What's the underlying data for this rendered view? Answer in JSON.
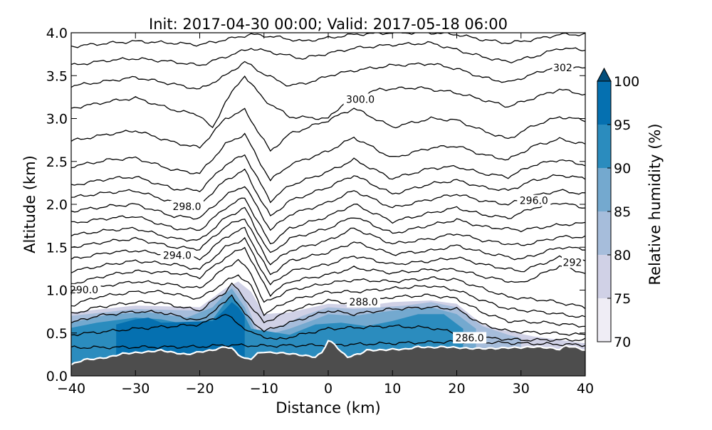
{
  "chart_data": {
    "type": "contour",
    "title": "Init: 2017-04-30 00:00; Valid: 2017-05-18 06:00",
    "xlabel": "Distance (km)",
    "ylabel": "Altitude (km)",
    "xlim": [
      -40,
      40
    ],
    "ylim": [
      0.0,
      4.0
    ],
    "xticks": [
      -40,
      -30,
      -20,
      -10,
      0,
      10,
      20,
      30,
      40
    ],
    "yticks": [
      0.0,
      0.5,
      1.0,
      1.5,
      2.0,
      2.5,
      3.0,
      3.5,
      4.0
    ],
    "xtick_labels": [
      "−40",
      "−30",
      "−20",
      "−10",
      "0",
      "10",
      "20",
      "30",
      "40"
    ],
    "ytick_labels": [
      "0.0",
      "0.5",
      "1.0",
      "1.5",
      "2.0",
      "2.5",
      "3.0",
      "3.5",
      "4.0"
    ],
    "colorbar": {
      "label": "Relative humidity (%)",
      "ticks": [
        70,
        75,
        80,
        85,
        90,
        95,
        100
      ],
      "tick_labels": [
        "70",
        "75",
        "80",
        "85",
        "90",
        "95",
        "100"
      ],
      "extend": "max",
      "colors": [
        "#efedf5",
        "#d0d1e6",
        "#a6bddb",
        "#74a9cf",
        "#2b8cbe",
        "#0570b0",
        "#034e7b"
      ]
    },
    "contour_labels": [
      {
        "text": "302",
        "x": 36.5,
        "y": 3.57
      },
      {
        "text": "300.0",
        "x": 5,
        "y": 3.2
      },
      {
        "text": "298.0",
        "x": -22,
        "y": 1.95
      },
      {
        "text": "296.0",
        "x": 32,
        "y": 2.02
      },
      {
        "text": "294.0",
        "x": -23.5,
        "y": 1.38
      },
      {
        "text": "292",
        "x": 38,
        "y": 1.3
      },
      {
        "text": "290.0",
        "x": -38,
        "y": 0.98
      },
      {
        "text": "288.0",
        "x": 5.5,
        "y": 0.84
      },
      {
        "text": "286.0",
        "x": 22,
        "y": 0.42
      }
    ],
    "terrain": {
      "x": [
        -40,
        -38,
        -36,
        -34,
        -32,
        -30,
        -28,
        -26,
        -24,
        -22,
        -20,
        -18,
        -16,
        -15,
        -14,
        -13,
        -12,
        -11,
        -10,
        -9,
        -8,
        -6,
        -4,
        -2,
        -1,
        0,
        1,
        2,
        3,
        4,
        5,
        6,
        8,
        10,
        12,
        14,
        16,
        18,
        20,
        22,
        24,
        26,
        28,
        30,
        32,
        34,
        36,
        37,
        38,
        40
      ],
      "y": [
        0.13,
        0.19,
        0.2,
        0.22,
        0.26,
        0.27,
        0.28,
        0.3,
        0.27,
        0.25,
        0.28,
        0.3,
        0.34,
        0.32,
        0.25,
        0.2,
        0.2,
        0.26,
        0.28,
        0.27,
        0.27,
        0.26,
        0.24,
        0.22,
        0.27,
        0.41,
        0.37,
        0.28,
        0.22,
        0.24,
        0.26,
        0.3,
        0.3,
        0.31,
        0.31,
        0.34,
        0.33,
        0.34,
        0.33,
        0.32,
        0.32,
        0.32,
        0.33,
        0.33,
        0.34,
        0.33,
        0.31,
        0.35,
        0.34,
        0.3
      ]
    },
    "theta_lines": [
      {
        "level": 286,
        "x": [
          -40,
          -20,
          -16,
          -10,
          0,
          10,
          20,
          30,
          40
        ],
        "y": [
          0.33,
          0.34,
          0.36,
          0.35,
          0.36,
          0.38,
          0.4,
          0.38,
          0.36
        ]
      },
      {
        "level": 287,
        "x": [
          -40,
          -30,
          -20,
          -16,
          -12,
          -8,
          0,
          10,
          16,
          20,
          25,
          30,
          40
        ],
        "y": [
          0.48,
          0.55,
          0.6,
          0.72,
          0.5,
          0.42,
          0.55,
          0.58,
          0.56,
          0.5,
          0.44,
          0.42,
          0.42
        ]
      },
      {
        "level": 288,
        "x": [
          -40,
          -36,
          -30,
          -26,
          -20,
          -16,
          -15,
          -13,
          -10,
          -6,
          0,
          4,
          10,
          16,
          20,
          24,
          28,
          34,
          40
        ],
        "y": [
          0.62,
          0.7,
          0.75,
          0.74,
          0.64,
          0.86,
          0.95,
          0.72,
          0.52,
          0.62,
          0.76,
          0.72,
          0.78,
          0.8,
          0.78,
          0.6,
          0.52,
          0.5,
          0.48
        ]
      },
      {
        "level": 289,
        "x": [
          -40,
          -36,
          -30,
          -26,
          -20,
          -16,
          -15,
          -13,
          -10,
          -6,
          0,
          4,
          10,
          16,
          20,
          24,
          28,
          34,
          40
        ],
        "y": [
          0.72,
          0.8,
          0.86,
          0.85,
          0.76,
          0.98,
          1.08,
          0.9,
          0.62,
          0.76,
          0.88,
          0.84,
          0.92,
          0.94,
          0.9,
          0.74,
          0.64,
          0.62,
          0.58
        ]
      },
      {
        "level": 290,
        "x": [
          -40,
          -36,
          -30,
          -26,
          -20,
          -16,
          -14,
          -12,
          -10,
          -6,
          0,
          4,
          10,
          16,
          20,
          24,
          28,
          34,
          40
        ],
        "y": [
          0.82,
          0.92,
          0.98,
          0.98,
          0.9,
          1.1,
          1.18,
          1.05,
          0.72,
          0.88,
          0.98,
          0.98,
          1.02,
          1.05,
          1.0,
          0.88,
          0.78,
          0.74,
          0.68
        ]
      },
      {
        "level": 291,
        "x": [
          -40,
          -34,
          -30,
          -26,
          -20,
          -16,
          -14,
          -12,
          -10,
          -6,
          0,
          4,
          10,
          16,
          20,
          24,
          28,
          34,
          40
        ],
        "y": [
          0.95,
          1.06,
          1.1,
          1.08,
          1.02,
          1.26,
          1.35,
          1.2,
          0.85,
          1.0,
          1.08,
          1.12,
          1.1,
          1.14,
          1.12,
          1.02,
          0.92,
          0.88,
          0.8
        ]
      },
      {
        "level": 292,
        "x": [
          -40,
          -34,
          -30,
          -24,
          -20,
          -16,
          -13,
          -11,
          -9,
          -6,
          0,
          4,
          10,
          16,
          20,
          24,
          30,
          36,
          40
        ],
        "y": [
          1.07,
          1.18,
          1.22,
          1.2,
          1.15,
          1.38,
          1.5,
          1.2,
          0.95,
          1.1,
          1.18,
          1.26,
          1.2,
          1.24,
          1.24,
          1.16,
          1.08,
          1.28,
          1.2
        ]
      },
      {
        "level": 293,
        "x": [
          -40,
          -34,
          -30,
          -24,
          -20,
          -16,
          -13,
          -11,
          -9,
          -6,
          0,
          4,
          10,
          16,
          20,
          24,
          30,
          36,
          40
        ],
        "y": [
          1.22,
          1.3,
          1.34,
          1.3,
          1.24,
          1.5,
          1.6,
          1.32,
          1.06,
          1.22,
          1.3,
          1.4,
          1.3,
          1.34,
          1.38,
          1.3,
          1.22,
          1.38,
          1.34
        ]
      },
      {
        "level": 294,
        "x": [
          -40,
          -34,
          -30,
          -23,
          -20,
          -16,
          -13,
          -11,
          -9,
          -6,
          0,
          4,
          10,
          16,
          20,
          24,
          30,
          36,
          40
        ],
        "y": [
          1.36,
          1.44,
          1.46,
          1.4,
          1.36,
          1.62,
          1.72,
          1.44,
          1.18,
          1.34,
          1.44,
          1.56,
          1.42,
          1.46,
          1.52,
          1.44,
          1.36,
          1.5,
          1.48
        ]
      },
      {
        "level": 295,
        "x": [
          -40,
          -34,
          -30,
          -24,
          -20,
          -16,
          -13,
          -11,
          -9,
          -6,
          0,
          4,
          10,
          16,
          20,
          24,
          30,
          36,
          40
        ],
        "y": [
          1.5,
          1.57,
          1.6,
          1.5,
          1.48,
          1.74,
          1.84,
          1.56,
          1.3,
          1.46,
          1.58,
          1.72,
          1.54,
          1.6,
          1.66,
          1.58,
          1.52,
          1.62,
          1.62
        ]
      },
      {
        "level": 296,
        "x": [
          -40,
          -34,
          -30,
          -24,
          -20,
          -16,
          -13,
          -11,
          -9,
          -6,
          0,
          4,
          10,
          16,
          20,
          24,
          30,
          36,
          40
        ],
        "y": [
          1.64,
          1.7,
          1.72,
          1.6,
          1.58,
          1.84,
          1.96,
          1.68,
          1.42,
          1.6,
          1.72,
          1.86,
          1.66,
          1.76,
          1.82,
          1.74,
          1.7,
          1.76,
          1.78
        ]
      },
      {
        "level": 297,
        "x": [
          -40,
          -34,
          -30,
          -24,
          -20,
          -16,
          -13,
          -11,
          -9,
          -6,
          0,
          4,
          10,
          16,
          20,
          24,
          28,
          32,
          36,
          40
        ],
        "y": [
          1.78,
          1.84,
          1.86,
          1.72,
          1.7,
          1.96,
          2.08,
          1.8,
          1.54,
          1.72,
          1.86,
          2.0,
          1.8,
          1.9,
          1.96,
          1.88,
          1.84,
          1.96,
          2.02,
          1.96
        ]
      },
      {
        "level": 298,
        "x": [
          -40,
          -34,
          -30,
          -24,
          -20,
          -16,
          -13,
          -11,
          -9,
          -6,
          0,
          4,
          10,
          16,
          20,
          24,
          28,
          32,
          36,
          40
        ],
        "y": [
          1.92,
          1.98,
          2.0,
          1.86,
          1.84,
          2.1,
          2.22,
          1.96,
          1.7,
          1.88,
          2.02,
          2.16,
          1.96,
          2.06,
          2.12,
          2.04,
          2.0,
          2.1,
          2.16,
          2.12
        ]
      },
      {
        "level": 299,
        "x": [
          -40,
          -34,
          -30,
          -24,
          -20,
          -16,
          -13,
          -11,
          -9,
          -6,
          0,
          4,
          10,
          16,
          20,
          24,
          28,
          32,
          36,
          40
        ],
        "y": [
          2.08,
          2.14,
          2.16,
          2.02,
          2.0,
          2.28,
          2.4,
          2.12,
          1.86,
          2.04,
          2.2,
          2.34,
          2.12,
          2.24,
          2.28,
          2.2,
          2.16,
          2.28,
          2.34,
          2.3
        ]
      },
      {
        "level": 300,
        "x": [
          -40,
          -34,
          -30,
          -24,
          -20,
          -16,
          -13,
          -11,
          -9,
          -6,
          0,
          4,
          10,
          16,
          20,
          24,
          28,
          32,
          36,
          40
        ],
        "y": [
          2.22,
          2.3,
          2.32,
          2.18,
          2.16,
          2.46,
          2.58,
          2.3,
          2.04,
          2.22,
          2.38,
          2.52,
          2.3,
          2.42,
          2.44,
          2.36,
          2.32,
          2.46,
          2.52,
          2.46
        ]
      },
      {
        "level": 301,
        "x": [
          -40,
          -34,
          -30,
          -24,
          -20,
          -16,
          -13,
          -11,
          -9,
          -6,
          0,
          4,
          10,
          16,
          20,
          24,
          28,
          32,
          36,
          40
        ],
        "y": [
          2.44,
          2.52,
          2.54,
          2.4,
          2.36,
          2.7,
          2.82,
          2.54,
          2.28,
          2.46,
          2.62,
          2.78,
          2.54,
          2.66,
          2.68,
          2.58,
          2.52,
          2.68,
          2.76,
          2.7
        ]
      },
      {
        "level": 302,
        "x": [
          -40,
          -34,
          -30,
          -24,
          -20,
          -16,
          -13,
          -11,
          -9,
          -6,
          0,
          4,
          10,
          16,
          20,
          24,
          28,
          32,
          36,
          40
        ],
        "y": [
          2.74,
          2.82,
          2.86,
          2.72,
          2.66,
          3.0,
          3.1,
          2.86,
          2.62,
          2.82,
          2.98,
          3.12,
          2.9,
          3.0,
          2.98,
          2.86,
          2.76,
          2.92,
          3.02,
          2.98
        ]
      },
      {
        "level": 303,
        "x": [
          -40,
          -34,
          -30,
          -24,
          -20,
          -18,
          -16,
          -13,
          -10,
          -6,
          0,
          3,
          8,
          14,
          20,
          24,
          28,
          32,
          36,
          40
        ],
        "y": [
          3.12,
          3.2,
          3.24,
          3.1,
          3.04,
          2.88,
          3.2,
          3.5,
          3.22,
          3.02,
          3.0,
          3.22,
          3.34,
          3.36,
          3.3,
          3.22,
          3.14,
          3.24,
          3.34,
          3.28
        ]
      },
      {
        "level": 304,
        "x": [
          -40,
          -34,
          -30,
          -24,
          -20,
          -16,
          -13,
          -10,
          -6,
          -2,
          0,
          4,
          10,
          16,
          20,
          24,
          28,
          32,
          36,
          40
        ],
        "y": [
          3.38,
          3.44,
          3.48,
          3.4,
          3.34,
          3.5,
          3.66,
          3.52,
          3.38,
          3.44,
          3.5,
          3.56,
          3.62,
          3.64,
          3.58,
          3.48,
          3.42,
          3.52,
          3.62,
          3.58
        ]
      },
      {
        "level": 305,
        "x": [
          -40,
          -34,
          -30,
          -24,
          -20,
          -16,
          -12,
          -8,
          -4,
          0,
          4,
          10,
          16,
          20,
          24,
          28,
          32,
          36,
          40
        ],
        "y": [
          3.62,
          3.68,
          3.7,
          3.66,
          3.62,
          3.72,
          3.82,
          3.76,
          3.7,
          3.76,
          3.82,
          3.86,
          3.88,
          3.8,
          3.72,
          3.66,
          3.72,
          3.82,
          3.8
        ]
      },
      {
        "level": 306,
        "x": [
          -40,
          -34,
          -30,
          -24,
          -20,
          -16,
          -12,
          -8,
          -4,
          0,
          4,
          10,
          16,
          20,
          24,
          28,
          32,
          36,
          40
        ],
        "y": [
          3.84,
          3.88,
          3.9,
          3.88,
          3.86,
          3.92,
          3.98,
          3.95,
          3.9,
          3.94,
          3.98,
          4.0,
          4.0,
          3.98,
          3.92,
          3.88,
          3.92,
          3.98,
          3.98
        ]
      }
    ],
    "rh_regions": [
      {
        "level": 75,
        "x": [
          -40,
          -30,
          -20,
          -16,
          -14,
          -12,
          -10,
          -6,
          0,
          6,
          10,
          16,
          20,
          24,
          28,
          32,
          36,
          40
        ],
        "top": [
          0.74,
          0.82,
          0.8,
          1.02,
          1.1,
          0.98,
          0.72,
          0.74,
          0.84,
          0.82,
          0.86,
          0.88,
          0.84,
          0.6,
          0.52,
          0.46,
          0.42,
          0.38
        ]
      },
      {
        "level": 80,
        "x": [
          -40,
          -30,
          -20,
          -16,
          -15,
          -13,
          -11,
          -8,
          -4,
          0,
          4,
          8,
          12,
          16,
          20,
          24,
          28,
          30
        ],
        "top": [
          0.7,
          0.78,
          0.76,
          0.98,
          1.06,
          0.9,
          0.52,
          0.56,
          0.7,
          0.8,
          0.78,
          0.8,
          0.82,
          0.86,
          0.8,
          0.58,
          0.48,
          0.44
        ]
      },
      {
        "level": 85,
        "x": [
          -40,
          -34,
          -28,
          -22,
          -18,
          -16,
          -15,
          -13,
          -11,
          -6,
          -2,
          0,
          4,
          8,
          12,
          16,
          20,
          23
        ],
        "top": [
          0.62,
          0.72,
          0.74,
          0.68,
          0.8,
          0.96,
          1.02,
          0.8,
          0.45,
          0.55,
          0.66,
          0.72,
          0.7,
          0.74,
          0.78,
          0.8,
          0.72,
          0.55
        ]
      },
      {
        "level": 90,
        "x": [
          -40,
          -36,
          -30,
          -26,
          -22,
          -18,
          -16,
          -15,
          -14,
          -12,
          -6,
          -2,
          2,
          6,
          10,
          14,
          18,
          21
        ],
        "top": [
          0.56,
          0.62,
          0.68,
          0.66,
          0.6,
          0.66,
          0.86,
          0.94,
          0.85,
          0.55,
          0.48,
          0.6,
          0.62,
          0.58,
          0.64,
          0.72,
          0.72,
          0.55
        ]
      },
      {
        "level": 95,
        "x": [
          -33,
          -30,
          -28,
          -26,
          -18,
          -16,
          -15,
          -14,
          -13
        ],
        "top": [
          0.6,
          0.66,
          0.68,
          0.62,
          0.64,
          0.78,
          0.86,
          0.8,
          0.7
        ]
      }
    ]
  }
}
